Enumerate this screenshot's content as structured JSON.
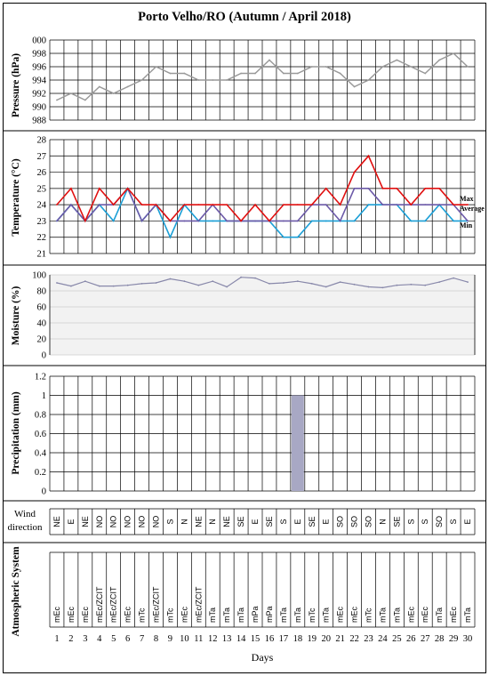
{
  "chart_data": {
    "type": "climogram",
    "title": "Porto Velho/RO (Autumn / April 2018)",
    "xlabel": "Days",
    "days": [
      1,
      2,
      3,
      4,
      5,
      6,
      7,
      8,
      9,
      10,
      11,
      12,
      13,
      14,
      15,
      16,
      17,
      18,
      19,
      20,
      21,
      22,
      23,
      24,
      25,
      26,
      27,
      28,
      29,
      30
    ],
    "panels": {
      "pressure": {
        "ylabel": "Pressure (hPa)",
        "ylim": [
          988,
          1000
        ],
        "ticks": [
          "000",
          "998",
          "996",
          "994",
          "992",
          "990",
          "988"
        ],
        "color": "#999999",
        "values": [
          991,
          992,
          991,
          993,
          992,
          993,
          994,
          996,
          995,
          995,
          994,
          994,
          994,
          995,
          995,
          997,
          995,
          995,
          996,
          996,
          995,
          993,
          994,
          996,
          997,
          996,
          995,
          997,
          998,
          996
        ]
      },
      "temperature": {
        "ylabel": "Temperature (°C)",
        "ylim": [
          21,
          28
        ],
        "ticks": [
          "28",
          "27",
          "26",
          "25",
          "24",
          "23",
          "22",
          "21"
        ],
        "series": [
          {
            "name": "Max",
            "color": "#e01010",
            "values": [
              24,
              25,
              23,
              25,
              24,
              25,
              24,
              24,
              23,
              24,
              24,
              24,
              24,
              23,
              24,
              23,
              24,
              24,
              24,
              25,
              24,
              26,
              27,
              25,
              25,
              24,
              25,
              25,
              24,
              24
            ]
          },
          {
            "name": "Average",
            "color": "#6c5aa8",
            "values": [
              23,
              24,
              23,
              24,
              24,
              25,
              23,
              24,
              23,
              23,
              23,
              24,
              23,
              23,
              23,
              23,
              23,
              23,
              24,
              24,
              23,
              25,
              25,
              24,
              24,
              24,
              24,
              24,
              24,
              23
            ]
          },
          {
            "name": "Min",
            "color": "#1b9fd6",
            "values": [
              23,
              24,
              23,
              24,
              23,
              25,
              23,
              24,
              22,
              24,
              23,
              23,
              23,
              23,
              23,
              23,
              22,
              22,
              23,
              23,
              23,
              23,
              24,
              24,
              24,
              23,
              23,
              24,
              23,
              23
            ]
          }
        ]
      },
      "moisture": {
        "ylabel": "Moisture (%)",
        "ylim": [
          0,
          100
        ],
        "ticks": [
          "100",
          "80",
          "60",
          "40",
          "20",
          "0"
        ],
        "color": "#8888aa",
        "values": [
          90,
          86,
          92,
          86,
          86,
          87,
          89,
          90,
          95,
          92,
          87,
          92,
          85,
          97,
          96,
          89,
          90,
          92,
          89,
          85,
          91,
          88,
          85,
          84,
          87,
          88,
          87,
          91,
          96,
          91
        ]
      },
      "precipitation": {
        "ylabel": "Precipitation (mm)",
        "ylim": [
          0,
          1.2
        ],
        "ticks": [
          "1.2",
          "1",
          "0.8",
          "0.6",
          "0.4",
          "0.2",
          "0"
        ],
        "color": "#a8a8c4",
        "values": [
          0,
          0,
          0,
          0,
          0,
          0,
          0,
          0,
          0,
          0,
          0,
          0,
          0,
          0,
          0,
          0,
          0,
          1,
          0,
          0,
          0,
          0,
          0,
          0,
          0,
          0,
          0,
          0,
          0,
          0
        ]
      }
    },
    "wind_direction": {
      "label": "Wind direction",
      "values": [
        "NE",
        "E",
        "NE",
        "NO",
        "NO",
        "NO",
        "NO",
        "NO",
        "S",
        "N",
        "NE",
        "N",
        "NE",
        "SE",
        "E",
        "SE",
        "S",
        "E",
        "SE",
        "E",
        "SO",
        "SO",
        "SO",
        "N",
        "SE",
        "S",
        "S",
        "SO",
        "S",
        "E"
      ]
    },
    "atmospheric_system": {
      "label": "Atmospheric System",
      "values": [
        "mEc",
        "mEc",
        "mEc",
        "mEc/ZCIT",
        "mEc/ZCIT",
        "mEc",
        "mTc",
        "mEc/ZCIT",
        "mTc",
        "mEc",
        "mEc/ZCIT",
        "mTa",
        "mTa",
        "mTa",
        "mPa",
        "mPa",
        "mTa",
        "mTa",
        "mTc",
        "mTa",
        "mEc",
        "mEc",
        "mTc",
        "mTa",
        "mTa",
        "mEc",
        "mEc",
        "mTa",
        "mEc",
        "mTa"
      ]
    }
  }
}
